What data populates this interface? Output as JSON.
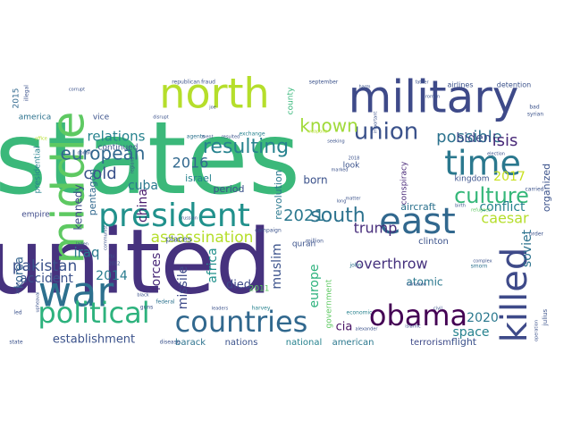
{
  "words": [
    {
      "text": "states",
      "color": "#3bb87a"
    },
    {
      "text": "united",
      "color": "#46327e"
    },
    {
      "text": "north",
      "color": "#b5de2b"
    },
    {
      "text": "military",
      "color": "#3e4a89"
    },
    {
      "text": "middle",
      "color": "#5ec962"
    },
    {
      "text": "war",
      "color": "#2d708e"
    },
    {
      "text": "president",
      "color": "#21918c"
    },
    {
      "text": "east",
      "color": "#31688e"
    },
    {
      "text": "time",
      "color": "#2a788e"
    },
    {
      "text": "killed",
      "color": "#3e4a89"
    },
    {
      "text": "countries",
      "color": "#31688e"
    },
    {
      "text": "political",
      "color": "#2db27d"
    },
    {
      "text": "obama",
      "color": "#440154"
    },
    {
      "text": "union",
      "color": "#3b528b"
    },
    {
      "text": "culture",
      "color": "#35b779"
    },
    {
      "text": "european",
      "color": "#31688e"
    },
    {
      "text": "resulting",
      "color": "#26828e"
    },
    {
      "text": "south",
      "color": "#2c728e"
    },
    {
      "text": "known",
      "color": "#a0da39"
    },
    {
      "text": "possible",
      "color": "#2c728e"
    },
    {
      "text": "cold",
      "color": "#3b528b"
    },
    {
      "text": "isis",
      "color": "#482878"
    },
    {
      "text": "biden",
      "color": "#3e4a89"
    },
    {
      "text": "relations",
      "color": "#26828e"
    },
    {
      "text": "cuba",
      "color": "#2a788e"
    },
    {
      "text": "2016",
      "color": "#31688e"
    },
    {
      "text": "china",
      "color": "#481a6c"
    },
    {
      "text": "assassination",
      "color": "#b5de2b"
    },
    {
      "text": "trump",
      "color": "#472d7b"
    },
    {
      "text": "2021",
      "color": "#2a788e"
    },
    {
      "text": "conflict",
      "color": "#26828e"
    },
    {
      "text": "caesar",
      "color": "#b5de2b"
    },
    {
      "text": "2017",
      "color": "#c8e020"
    },
    {
      "text": "soviet",
      "color": "#2c728e"
    },
    {
      "text": "pakistan",
      "color": "#3b528b"
    },
    {
      "text": "iraq",
      "color": "#2a788e"
    },
    {
      "text": "2014",
      "color": "#287c8e"
    },
    {
      "text": "accident",
      "color": "#3b528b"
    },
    {
      "text": "forces",
      "color": "#482878"
    },
    {
      "text": "missile",
      "color": "#3e4a89"
    },
    {
      "text": "europe",
      "color": "#2db27d"
    },
    {
      "text": "overthrow",
      "color": "#46327e"
    },
    {
      "text": "2020",
      "color": "#2a788e"
    },
    {
      "text": "space",
      "color": "#26828e"
    },
    {
      "text": "establishment",
      "color": "#3b528b"
    },
    {
      "text": "cia",
      "color": "#471063"
    },
    {
      "text": "died",
      "color": "#3e4a89"
    },
    {
      "text": "atomic",
      "color": "#2a788e"
    },
    {
      "text": "korea",
      "color": "#33638d"
    },
    {
      "text": "africa",
      "color": "#21918c"
    },
    {
      "text": "muslim",
      "color": "#3b528b"
    },
    {
      "text": "kennedy",
      "color": "#3e4a89"
    },
    {
      "text": "pentagon",
      "color": "#31688e"
    },
    {
      "text": "organized",
      "color": "#3b528b"
    },
    {
      "text": "aircraft",
      "color": "#2c728e"
    },
    {
      "text": "flight",
      "color": "#3b528b"
    },
    {
      "text": "terrorism",
      "color": "#3e4a89"
    },
    {
      "text": "american",
      "color": "#2a788e"
    },
    {
      "text": "national",
      "color": "#26828e"
    },
    {
      "text": "nations",
      "color": "#3b528b"
    },
    {
      "text": "barack",
      "color": "#2c728e"
    },
    {
      "text": "born",
      "color": "#3b528b"
    },
    {
      "text": "israel",
      "color": "#26828e"
    },
    {
      "text": "period",
      "color": "#3b528b"
    },
    {
      "text": "revolution",
      "color": "#2a788e"
    },
    {
      "text": "government",
      "color": "#5ec962"
    },
    {
      "text": "clinton",
      "color": "#3b528b"
    },
    {
      "text": "continued",
      "color": "#3b528b"
    },
    {
      "text": "america",
      "color": "#2c728e"
    },
    {
      "text": "presidential",
      "color": "#26828e"
    },
    {
      "text": "kingdom",
      "color": "#3b528b"
    },
    {
      "text": "conspiracy",
      "color": "#482878"
    },
    {
      "text": "quran",
      "color": "#3b528b"
    },
    {
      "text": "2015",
      "color": "#31688e"
    },
    {
      "text": "vice",
      "color": "#3b528b"
    },
    {
      "text": "places",
      "color": "#3b528b"
    },
    {
      "text": "county",
      "color": "#35b779"
    },
    {
      "text": "look",
      "color": "#3b528b"
    },
    {
      "text": "2011",
      "color": "#5ec962"
    },
    {
      "text": "empire",
      "color": "#3e4a89"
    },
    {
      "text": "airlines",
      "color": "#3b528b"
    },
    {
      "text": "detention",
      "color": "#3b528b"
    },
    {
      "text": "republican",
      "color": "#3b528b"
    },
    {
      "text": "fraud",
      "color": "#3b528b"
    },
    {
      "text": "september",
      "color": "#3b528b"
    },
    {
      "text": "federal",
      "color": "#2c728e"
    },
    {
      "text": "economic",
      "color": "#26828e"
    },
    {
      "text": "guns",
      "color": "#3b528b"
    },
    {
      "text": "julius",
      "color": "#3b528b"
    },
    {
      "text": "harvey",
      "color": "#26828e"
    },
    {
      "text": "disease",
      "color": "#3b528b"
    },
    {
      "text": "campaign",
      "color": "#3b528b"
    },
    {
      "text": "exchange",
      "color": "#26828e"
    },
    {
      "text": "million",
      "color": "#3b528b"
    },
    {
      "text": "john",
      "color": "#2c728e"
    },
    {
      "text": "agents",
      "color": "#2c728e"
    },
    {
      "text": "bad",
      "color": "#3b528b"
    },
    {
      "text": "syrian",
      "color": "#3b528b"
    },
    {
      "text": "carried",
      "color": "#3b528b"
    },
    {
      "text": "order",
      "color": "#3b528b"
    },
    {
      "text": "state",
      "color": "#3b528b"
    },
    {
      "text": "operation",
      "color": "#3b528b"
    },
    {
      "text": "smorn",
      "color": "#2c728e"
    },
    {
      "text": "illegal",
      "color": "#3b528b"
    },
    {
      "text": "area",
      "color": "#3b528b"
    },
    {
      "text": "led",
      "color": "#3b528b"
    },
    {
      "text": "matter",
      "color": "#3b528b"
    },
    {
      "text": "2018",
      "color": "#3b528b"
    },
    {
      "text": "laden",
      "color": "#3b528b"
    },
    {
      "text": "donald",
      "color": "#3b528b"
    },
    {
      "text": "russian",
      "color": "#3b528b"
    },
    {
      "text": "2012",
      "color": "#3b528b"
    },
    {
      "text": "fbi",
      "color": "#3b528b"
    },
    {
      "text": "birth",
      "color": "#3b528b"
    },
    {
      "text": "election",
      "color": "#3b528b"
    },
    {
      "text": "islamic",
      "color": "#3b528b"
    },
    {
      "text": "disrupt",
      "color": "#3b528b"
    },
    {
      "text": "office",
      "color": "#b5de2b"
    },
    {
      "text": "corrupt",
      "color": "#3b528b"
    },
    {
      "text": "joe",
      "color": "#3b528b"
    },
    {
      "text": "father",
      "color": "#3b528b"
    },
    {
      "text": "roman",
      "color": "#3b528b"
    },
    {
      "text": "cameron",
      "color": "#3b528b"
    },
    {
      "text": "resulted",
      "color": "#3b528b"
    },
    {
      "text": "long",
      "color": "#3b528b"
    },
    {
      "text": "refugees",
      "color": "#5ec962"
    },
    {
      "text": "complex",
      "color": "#3b528b"
    },
    {
      "text": "weapons",
      "color": "#b5de2b"
    },
    {
      "text": "communist",
      "color": "#3b528b"
    },
    {
      "text": "upheaval",
      "color": "#3b528b"
    },
    {
      "text": "regions",
      "color": "#3b528b"
    },
    {
      "text": "ment",
      "color": "#3b528b"
    },
    {
      "text": "marked",
      "color": "#3b528b"
    },
    {
      "text": "seeking",
      "color": "#3b528b"
    },
    {
      "text": "important",
      "color": "#3b528b"
    },
    {
      "text": "harm",
      "color": "#3b528b"
    },
    {
      "text": "alexander",
      "color": "#3b528b"
    },
    {
      "text": "black",
      "color": "#3b528b"
    },
    {
      "text": "civil",
      "color": "#3b528b"
    },
    {
      "text": "leaders",
      "color": "#3b528b"
    }
  ]
}
